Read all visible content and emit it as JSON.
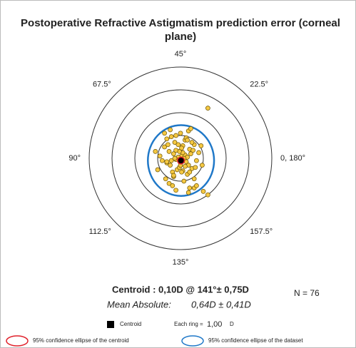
{
  "chart_data": {
    "type": "polar-scatter",
    "title": [
      "Postoperative Refractive Astigmatism prediction error (corneal",
      "plane)"
    ],
    "angle_ticks": [
      {
        "value": 0,
        "label": "0, 180°"
      },
      {
        "value": 22.5,
        "label": "22.5°"
      },
      {
        "value": 45,
        "label": "45°"
      },
      {
        "value": 67.5,
        "label": "67.5°"
      },
      {
        "value": 90,
        "label": "90°"
      },
      {
        "value": 112.5,
        "label": "112.5°"
      },
      {
        "value": 135,
        "label": "135°"
      },
      {
        "value": 157.5,
        "label": "157.5°"
      }
    ],
    "rlim": [
      0,
      4
    ],
    "rticks": [
      1,
      2,
      3,
      4
    ],
    "point_color": "#f5c842",
    "x": [
      0.05,
      -0.1,
      0.15,
      0.2,
      -0.2,
      0.1,
      0.0,
      -0.05,
      0.25,
      0.3,
      -0.3,
      0.35,
      -0.4,
      0.4,
      -0.5,
      0.5,
      -0.6,
      0.6,
      -0.7,
      0.7,
      0.1,
      -0.15,
      0.2,
      -0.25,
      0.3,
      -0.35,
      0.45,
      -0.45,
      0.55,
      -0.55,
      0.65,
      -0.65,
      0.8,
      -0.8,
      0.15,
      -0.2,
      0.25,
      -0.3,
      0.4,
      -0.4,
      0.5,
      -0.5,
      0.6,
      -0.6,
      0.05,
      -0.05,
      0.1,
      -0.1,
      0.2,
      -0.2,
      0.3,
      -0.3,
      0.0,
      0.0,
      0.35,
      -0.35,
      -0.9,
      -1.1,
      0.95,
      0.4,
      0.6,
      1.0,
      1.2,
      0.35,
      -0.45,
      -0.6,
      -0.2,
      0.45,
      1.2,
      -0.7,
      0.15,
      -0.25,
      0.05,
      0.7,
      -1.0,
      0.9
    ],
    "y": [
      0.1,
      0.05,
      -0.1,
      0.15,
      -0.05,
      0.25,
      -0.2,
      0.3,
      -0.15,
      0.05,
      0.2,
      -0.3,
      -0.1,
      0.4,
      0.3,
      -0.45,
      -0.2,
      0.6,
      0.5,
      -0.1,
      0.55,
      -0.5,
      0.8,
      0.7,
      -0.7,
      -0.6,
      0.2,
      -0.3,
      0.35,
      0.6,
      -0.4,
      -0.9,
      0.25,
      -0.1,
      -1.0,
      1.0,
      0.9,
      -0.8,
      -0.6,
      0.95,
      0.7,
      -1.1,
      -0.9,
      0.85,
      0.45,
      -0.4,
      -0.55,
      0.6,
      -0.35,
      0.35,
      0.8,
      -0.75,
      1.1,
      -0.3,
      1.2,
      -1.2,
      0.1,
      0.3,
      -0.3,
      -1.3,
      -1.3,
      -1.45,
      -1.6,
      -1.5,
      1.25,
      -0.15,
      -1.4,
      1.3,
      2.2,
      1.1,
      0.0,
      0.0,
      -0.6,
      -1.2,
      -0.5,
      0.55
    ],
    "centroid": {
      "r": 0.1,
      "angle": 141
    },
    "centroid_ellipse": {
      "rx": 0.15,
      "ry": 0.15,
      "color": "#e0202a"
    },
    "dataset_ellipse": {
      "rx": 1.45,
      "ry": 1.55,
      "color": "#1f78c8"
    },
    "centroid_text": "Centroid :  0,10D  @  141°± 0,75D",
    "mean_label": "Mean Absolute:",
    "mean_text": "0,64D  ± 0,41D",
    "n_text": "N = 76",
    "legend": {
      "centroid": "Centroid",
      "ring_label": "Each ring =",
      "ring_value": "1,00",
      "ring_unit": "D",
      "centroid_ellipse": "95% confidence ellipse of the centroid",
      "dataset_ellipse": "95% confidence ellipse of the dataset"
    }
  }
}
